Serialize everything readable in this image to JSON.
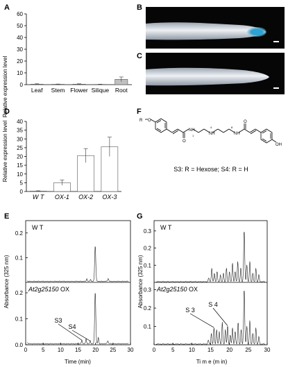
{
  "panels": {
    "A": {
      "letter": "A",
      "chart_data": {
        "type": "bar",
        "categories": [
          "Leaf",
          "Stem",
          "Flower",
          "Silique",
          "Root"
        ],
        "values": [
          0.4,
          0.3,
          0.4,
          0.2,
          4.5
        ],
        "errors": [
          0.3,
          0.2,
          0.3,
          0.2,
          2.0
        ],
        "ylabel": "Relative expression level",
        "ylim": [
          0,
          60
        ],
        "yticks": [
          0,
          10,
          20,
          30,
          40,
          50,
          60
        ],
        "bar_colors": [
          "#c0c0c0",
          "#c0c0c0",
          "#c0c0c0",
          "#c0c0c0",
          "#c0c0c0"
        ]
      }
    },
    "B": {
      "letter": "B",
      "image": "GUS-stained root tip (blue staining at apex)"
    },
    "C": {
      "letter": "C",
      "image": "control root tip (no staining)"
    },
    "D": {
      "letter": "D",
      "chart_data": {
        "type": "bar",
        "categories": [
          "W T",
          "OX-1",
          "OX-2",
          "OX-3"
        ],
        "values": [
          0.2,
          5,
          20.5,
          25.5
        ],
        "errors": [
          0.2,
          1.5,
          4,
          5.5
        ],
        "ylabel": "Relative expression level",
        "ylim": [
          0,
          40
        ],
        "yticks": [
          0,
          5,
          10,
          15,
          20,
          25,
          30,
          35,
          40
        ],
        "bar_colors": [
          "#ffffff",
          "#ffffff",
          "#ffffff",
          "#ffffff"
        ]
      }
    },
    "E": {
      "letter": "E",
      "ylabel": "Absorbance (325 nm)",
      "xlabel": "Time (min)",
      "xticks": [
        "0",
        "5",
        "10",
        "15",
        "20",
        "25",
        "30"
      ],
      "top_label": "W T",
      "bottom_label_gene": "At2g25150",
      "bottom_label_suffix": " OX",
      "top_yticks": [
        "0.2",
        "0.1"
      ],
      "bottom_yticks": [
        "0.2",
        "0.1",
        "0.0"
      ],
      "peak_labels": [
        "S3",
        "S4"
      ]
    },
    "F": {
      "letter": "F",
      "caption": "S3: R = Hexose;  S4: R = H",
      "substituent": "R",
      "hydroxyl": "OH",
      "atom_numbers": [
        "1",
        "4",
        "8"
      ]
    },
    "G": {
      "letter": "G",
      "ylabel": "Absorbance (325 nm)",
      "xlabel": "Ti m e (m in)",
      "xticks": [
        "0",
        "5",
        "10",
        "15",
        "20",
        "25",
        "30"
      ],
      "top_label": "W T",
      "bottom_label_gene": "At2g25150",
      "bottom_label_suffix": " OX",
      "top_yticks": [
        "0.3",
        "0.2",
        "0.1"
      ],
      "bottom_yticks": [
        "0.3",
        "0.2",
        "0.1"
      ],
      "peak_labels": [
        "S 3",
        "S 4"
      ]
    }
  }
}
